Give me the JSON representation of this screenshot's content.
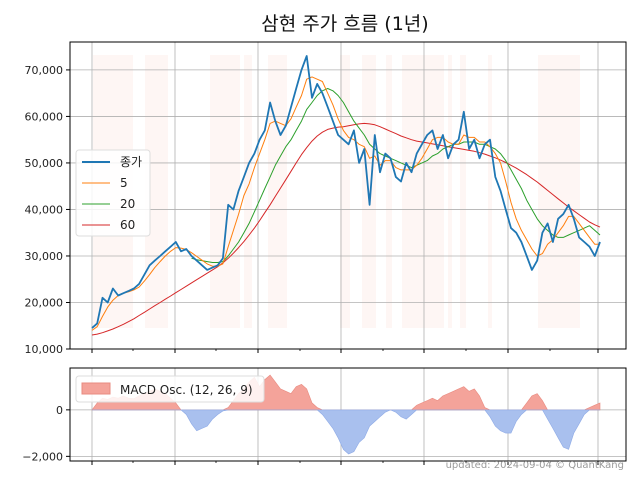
{
  "chart_data": [
    {
      "type": "line",
      "title": "삼현 주가 흐름 (1년)",
      "xlabel": "",
      "ylabel": "",
      "ylim": [
        10000,
        76000
      ],
      "y_ticks": [
        10000,
        20000,
        30000,
        40000,
        50000,
        60000,
        70000
      ],
      "y_tick_labels": [
        "10,000",
        "20,000",
        "30,000",
        "40,000",
        "50,000",
        "60,000",
        "70,000"
      ],
      "grid": true,
      "legend_position": "center-left",
      "series": [
        {
          "name": "종가",
          "color": "#1f77b4",
          "values": [
            14500,
            15500,
            21000,
            20000,
            23000,
            21500,
            22000,
            22500,
            23000,
            24000,
            26000,
            28000,
            29000,
            30000,
            31000,
            32000,
            33000,
            31000,
            31500,
            30000,
            29000,
            28000,
            27000,
            27500,
            28000,
            29500,
            41000,
            40000,
            44000,
            47000,
            50000,
            52000,
            55000,
            57000,
            63000,
            59000,
            56000,
            58000,
            62000,
            66000,
            70000,
            73000,
            64000,
            67000,
            65000,
            62000,
            59000,
            56000,
            55000,
            54000,
            57000,
            50000,
            53000,
            41000,
            56000,
            48000,
            52000,
            51000,
            47000,
            46000,
            50000,
            48000,
            52000,
            54000,
            56000,
            57000,
            53000,
            56000,
            51000,
            54000,
            55000,
            61000,
            53000,
            55000,
            51000,
            54000,
            55000,
            47000,
            44000,
            40000,
            36000,
            35000,
            33000,
            30000,
            27000,
            29000,
            35000,
            37000,
            33000,
            38000,
            39000,
            41000,
            38000,
            34000,
            33000,
            32000,
            30000,
            33000
          ]
        },
        {
          "name": "5",
          "color": "#ff7f0e",
          "values": [
            14000,
            14800,
            17000,
            19000,
            20500,
            21500,
            22000,
            22300,
            22700,
            23300,
            24600,
            26000,
            27500,
            28800,
            30000,
            31000,
            31800,
            31700,
            31400,
            30700,
            29900,
            29100,
            28300,
            27800,
            27800,
            28300,
            32000,
            35500,
            39000,
            43000,
            45500,
            49000,
            52000,
            55000,
            58500,
            59000,
            58500,
            58000,
            59500,
            62000,
            64500,
            68000,
            68500,
            68000,
            67500,
            65000,
            62500,
            59500,
            57000,
            55500,
            55000,
            54000,
            53500,
            51000,
            51500,
            49500,
            50500,
            50500,
            49000,
            48500,
            48500,
            48500,
            49500,
            51000,
            53000,
            55000,
            55500,
            55500,
            54500,
            54000,
            54000,
            56000,
            55500,
            55500,
            54500,
            54500,
            53500,
            52000,
            50000,
            46000,
            41500,
            38000,
            35500,
            33500,
            31500,
            30000,
            30500,
            32500,
            33500,
            35000,
            36500,
            38500,
            38500,
            37000,
            35500,
            34000,
            32500,
            32500
          ]
        },
        {
          "name": "20",
          "color": "#2ca02c",
          "values": [
            null,
            null,
            null,
            null,
            null,
            null,
            null,
            null,
            null,
            null,
            null,
            null,
            null,
            null,
            null,
            null,
            null,
            null,
            null,
            29500,
            29200,
            29000,
            28800,
            28600,
            28600,
            28800,
            30000,
            31500,
            33000,
            35000,
            37000,
            39500,
            42000,
            44500,
            47000,
            49500,
            51500,
            53500,
            55000,
            57000,
            59000,
            61500,
            63000,
            64500,
            65500,
            66000,
            65500,
            64500,
            63000,
            61000,
            59000,
            57500,
            56000,
            54000,
            53000,
            52000,
            51500,
            51000,
            50500,
            50000,
            49500,
            49000,
            49500,
            50000,
            50500,
            51500,
            52000,
            53000,
            53500,
            54000,
            54000,
            54500,
            54500,
            54500,
            54000,
            54000,
            53500,
            53000,
            52000,
            50500,
            48500,
            46500,
            44500,
            42000,
            40000,
            38000,
            36500,
            35500,
            34500,
            34000,
            34000,
            34500,
            35000,
            35500,
            36000,
            36500,
            35500,
            34500
          ]
        },
        {
          "name": "60",
          "color": "#d62728",
          "values": [
            13000,
            13200,
            13500,
            13900,
            14300,
            14800,
            15300,
            15900,
            16500,
            17200,
            17900,
            18600,
            19300,
            20000,
            20700,
            21400,
            22100,
            22800,
            23500,
            24200,
            24900,
            25600,
            26300,
            27000,
            27700,
            28500,
            29500,
            30600,
            31800,
            33100,
            34500,
            36000,
            37600,
            39300,
            41000,
            42800,
            44600,
            46400,
            48200,
            50000,
            51800,
            53300,
            54700,
            55800,
            56600,
            57200,
            57500,
            57700,
            57800,
            58000,
            58200,
            58400,
            58500,
            58400,
            58200,
            57800,
            57300,
            56800,
            56300,
            55800,
            55400,
            55000,
            54700,
            54500,
            54300,
            54100,
            53900,
            53700,
            53500,
            53300,
            53100,
            52900,
            52700,
            52500,
            52200,
            51900,
            51500,
            51100,
            50600,
            50100,
            49500,
            48900,
            48200,
            47500,
            46700,
            45900,
            45000,
            44100,
            43200,
            42300,
            41400,
            40500,
            39700,
            38900,
            38100,
            37300,
            36700,
            36200
          ]
        }
      ]
    },
    {
      "type": "area",
      "title": "",
      "xlabel": "",
      "ylabel": "",
      "ylim": [
        -2200,
        1800
      ],
      "y_ticks": [
        -2000,
        0
      ],
      "y_tick_labels": [
        "−2,000",
        "0"
      ],
      "grid": true,
      "legend_position": "top-left",
      "series": [
        {
          "name": "MACD Osc. (12, 26, 9)",
          "positive_color": "#f4a39a",
          "negative_color": "#a9c0ee",
          "values": [
            0,
            300,
            500,
            450,
            550,
            500,
            600,
            500,
            480,
            600,
            700,
            800,
            900,
            800,
            700,
            500,
            300,
            0,
            -200,
            -600,
            -900,
            -800,
            -700,
            -400,
            -200,
            -50,
            100,
            400,
            700,
            900,
            1200,
            1400,
            1000,
            1300,
            1500,
            1200,
            900,
            800,
            700,
            1000,
            1100,
            900,
            300,
            100,
            -200,
            -500,
            -800,
            -1200,
            -1700,
            -1900,
            -1800,
            -1400,
            -1200,
            -700,
            -500,
            -300,
            -100,
            0,
            -100,
            -300,
            -400,
            -200,
            200,
            300,
            400,
            500,
            400,
            600,
            700,
            800,
            900,
            1000,
            800,
            900,
            600,
            100,
            -300,
            -700,
            -900,
            -1000,
            -1000,
            -500,
            -200,
            300,
            600,
            700,
            400,
            -400,
            -800,
            -1200,
            -1600,
            -1700,
            -1000,
            -600,
            -200,
            100,
            200,
            300
          ]
        }
      ]
    }
  ],
  "footer": "updated: 2024-09-04 © QuantKang"
}
